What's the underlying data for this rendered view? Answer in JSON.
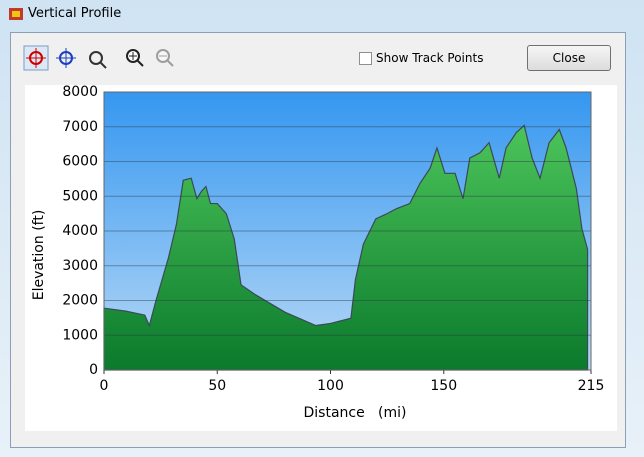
{
  "window": {
    "title": "Vertical Profile",
    "checkbox_label": "Show Track Points",
    "close_button": "Close"
  },
  "chart_data": {
    "type": "area",
    "x_label": "Distance   (mi)",
    "y_label": "Elevation (ft)",
    "x": [
      0,
      10,
      18,
      20,
      23,
      28.5,
      32,
      35,
      38.5,
      41,
      43,
      45,
      47,
      50,
      54,
      57.5,
      60.5,
      67,
      80,
      93.5,
      100,
      109,
      111,
      114.5,
      120,
      125,
      129,
      135,
      139.5,
      144,
      147,
      150.5,
      155,
      158.5,
      161.5,
      166,
      170,
      174.5,
      177.5,
      182,
      185.5,
      189,
      192.5,
      196.5,
      201,
      204,
      208.5,
      211,
      213.5
    ],
    "values": [
      1780,
      1690,
      1580,
      1280,
      2010,
      3240,
      4200,
      5460,
      5520,
      4930,
      5140,
      5280,
      4790,
      4790,
      4500,
      3770,
      2450,
      2160,
      1660,
      1280,
      1340,
      1490,
      2600,
      3620,
      4350,
      4500,
      4640,
      4790,
      5370,
      5810,
      6390,
      5660,
      5660,
      4930,
      6100,
      6250,
      6540,
      5520,
      6390,
      6830,
      7040,
      6100,
      5520,
      6540,
      6920,
      6390,
      5230,
      4060,
      3470
    ],
    "color": "#1f9a3c",
    "xlim": [
      0,
      215
    ],
    "xticks": [
      0,
      50,
      100,
      150,
      215
    ],
    "ylim": [
      0,
      8000
    ],
    "yticks": [
      0,
      1000,
      2000,
      3000,
      4000,
      5000,
      6000,
      7000,
      8000
    ],
    "grid": true
  }
}
